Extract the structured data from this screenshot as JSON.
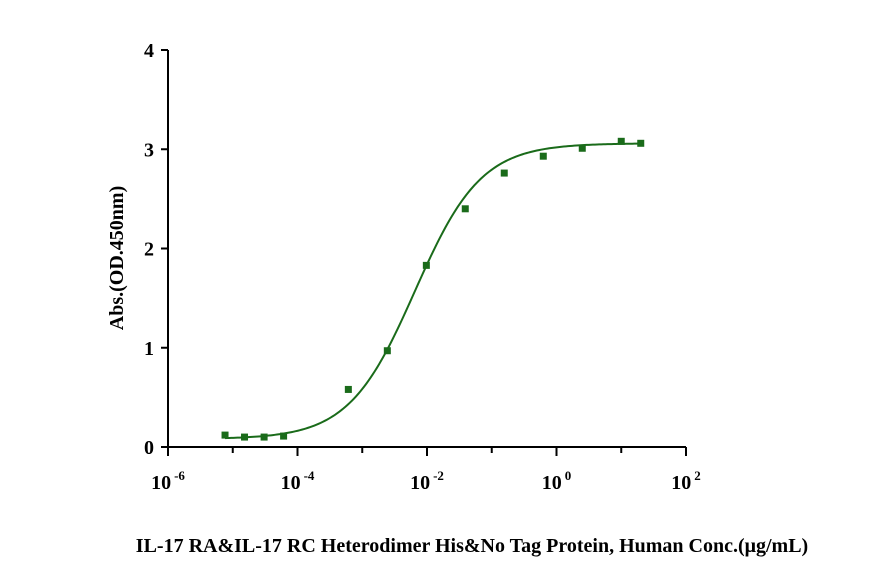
{
  "chart_data": {
    "type": "scatter",
    "xlabel": "IL-17 RA&IL-17 RC Heterodimer His&No Tag Protein, Human Conc.(μg/mL)",
    "ylabel": "Abs.(OD.450nm)",
    "x_scale": "log10",
    "xlim": [
      1e-06,
      100
    ],
    "ylim": [
      0,
      4
    ],
    "x_ticks": [
      {
        "base": "10",
        "exp": "-6"
      },
      {
        "base": "10",
        "exp": "-4"
      },
      {
        "base": "10",
        "exp": "-2"
      },
      {
        "base": "10",
        "exp": "0"
      },
      {
        "base": "10",
        "exp": "2"
      }
    ],
    "y_ticks": [
      "0",
      "1",
      "2",
      "3",
      "4"
    ],
    "grid": false,
    "color": "#1a6b1a",
    "points": [
      {
        "x": 7.6e-06,
        "y": 0.12
      },
      {
        "x": 1.52e-05,
        "y": 0.1
      },
      {
        "x": 3.05e-05,
        "y": 0.1
      },
      {
        "x": 6.1e-05,
        "y": 0.11
      },
      {
        "x": 0.00061,
        "y": 0.58
      },
      {
        "x": 0.00244,
        "y": 0.97
      },
      {
        "x": 0.00977,
        "y": 1.83
      },
      {
        "x": 0.039,
        "y": 2.4
      },
      {
        "x": 0.156,
        "y": 2.76
      },
      {
        "x": 0.625,
        "y": 2.93
      },
      {
        "x": 2.5,
        "y": 3.01
      },
      {
        "x": 10,
        "y": 3.08
      },
      {
        "x": 20,
        "y": 3.06
      }
    ],
    "fit": {
      "bottom": 0.08,
      "top": 3.06,
      "ec50": 0.0065,
      "hill": 0.85
    }
  }
}
